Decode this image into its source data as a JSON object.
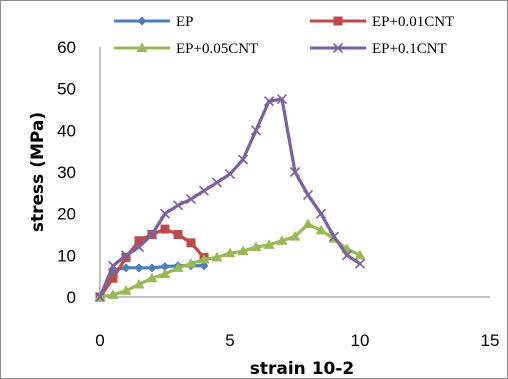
{
  "chart_data": {
    "type": "line",
    "xlabel": "strain 10-2",
    "ylabel": "stress (MPa)",
    "xlim": [
      0,
      15
    ],
    "ylim": [
      0,
      60
    ],
    "x_ticks": [
      0,
      5,
      10,
      15
    ],
    "y_ticks": [
      0,
      10,
      20,
      30,
      40,
      50,
      60
    ],
    "grid": false,
    "legend_position": "top",
    "series": [
      {
        "name": "EP",
        "color": "#4a7ebb",
        "marker": "diamond",
        "x": [
          0,
          0.5,
          1.0,
          1.5,
          2.0,
          2.5,
          3.0,
          3.5,
          4.0
        ],
        "y": [
          0,
          6.5,
          7.0,
          7.0,
          7.0,
          7.3,
          7.5,
          7.5,
          7.5
        ]
      },
      {
        "name": "EP+0.01CNT",
        "color": "#be4b48",
        "marker": "square",
        "x": [
          0,
          0.5,
          1.0,
          1.5,
          2.0,
          2.5,
          3.0,
          3.5,
          4.0
        ],
        "y": [
          0,
          4.5,
          9.5,
          13.5,
          15.0,
          16.3,
          15.0,
          13.0,
          9.5
        ]
      },
      {
        "name": "EP+0.05CNT",
        "color": "#98b954",
        "marker": "triangle",
        "x": [
          0,
          0.5,
          1.0,
          1.5,
          2.0,
          2.5,
          3.0,
          3.5,
          4.0,
          4.5,
          5.0,
          5.5,
          6.0,
          6.5,
          7.0,
          7.5,
          8.0,
          8.5,
          9.0,
          9.5,
          10.0
        ],
        "y": [
          0,
          0.5,
          1.5,
          3.0,
          4.5,
          5.5,
          7.0,
          8.0,
          9.0,
          9.5,
          10.5,
          11.0,
          12.0,
          12.5,
          13.5,
          14.5,
          17.5,
          16.0,
          14.0,
          11.5,
          10.0
        ]
      },
      {
        "name": "EP+0.1CNT",
        "color": "#7d60a0",
        "marker": "x",
        "x": [
          0,
          0.5,
          1.0,
          1.5,
          2.0,
          2.5,
          3.0,
          3.5,
          4.0,
          4.5,
          5.0,
          5.5,
          6.0,
          6.5,
          7.0,
          7.5,
          8.0,
          8.5,
          9.0,
          9.5,
          10.0
        ],
        "y": [
          0,
          7.5,
          10.0,
          12.0,
          15.0,
          20.0,
          22.0,
          23.5,
          25.5,
          27.5,
          29.5,
          33.0,
          40.0,
          47.0,
          47.5,
          30.0,
          24.5,
          20.0,
          14.5,
          10.0,
          8.0
        ]
      }
    ]
  }
}
